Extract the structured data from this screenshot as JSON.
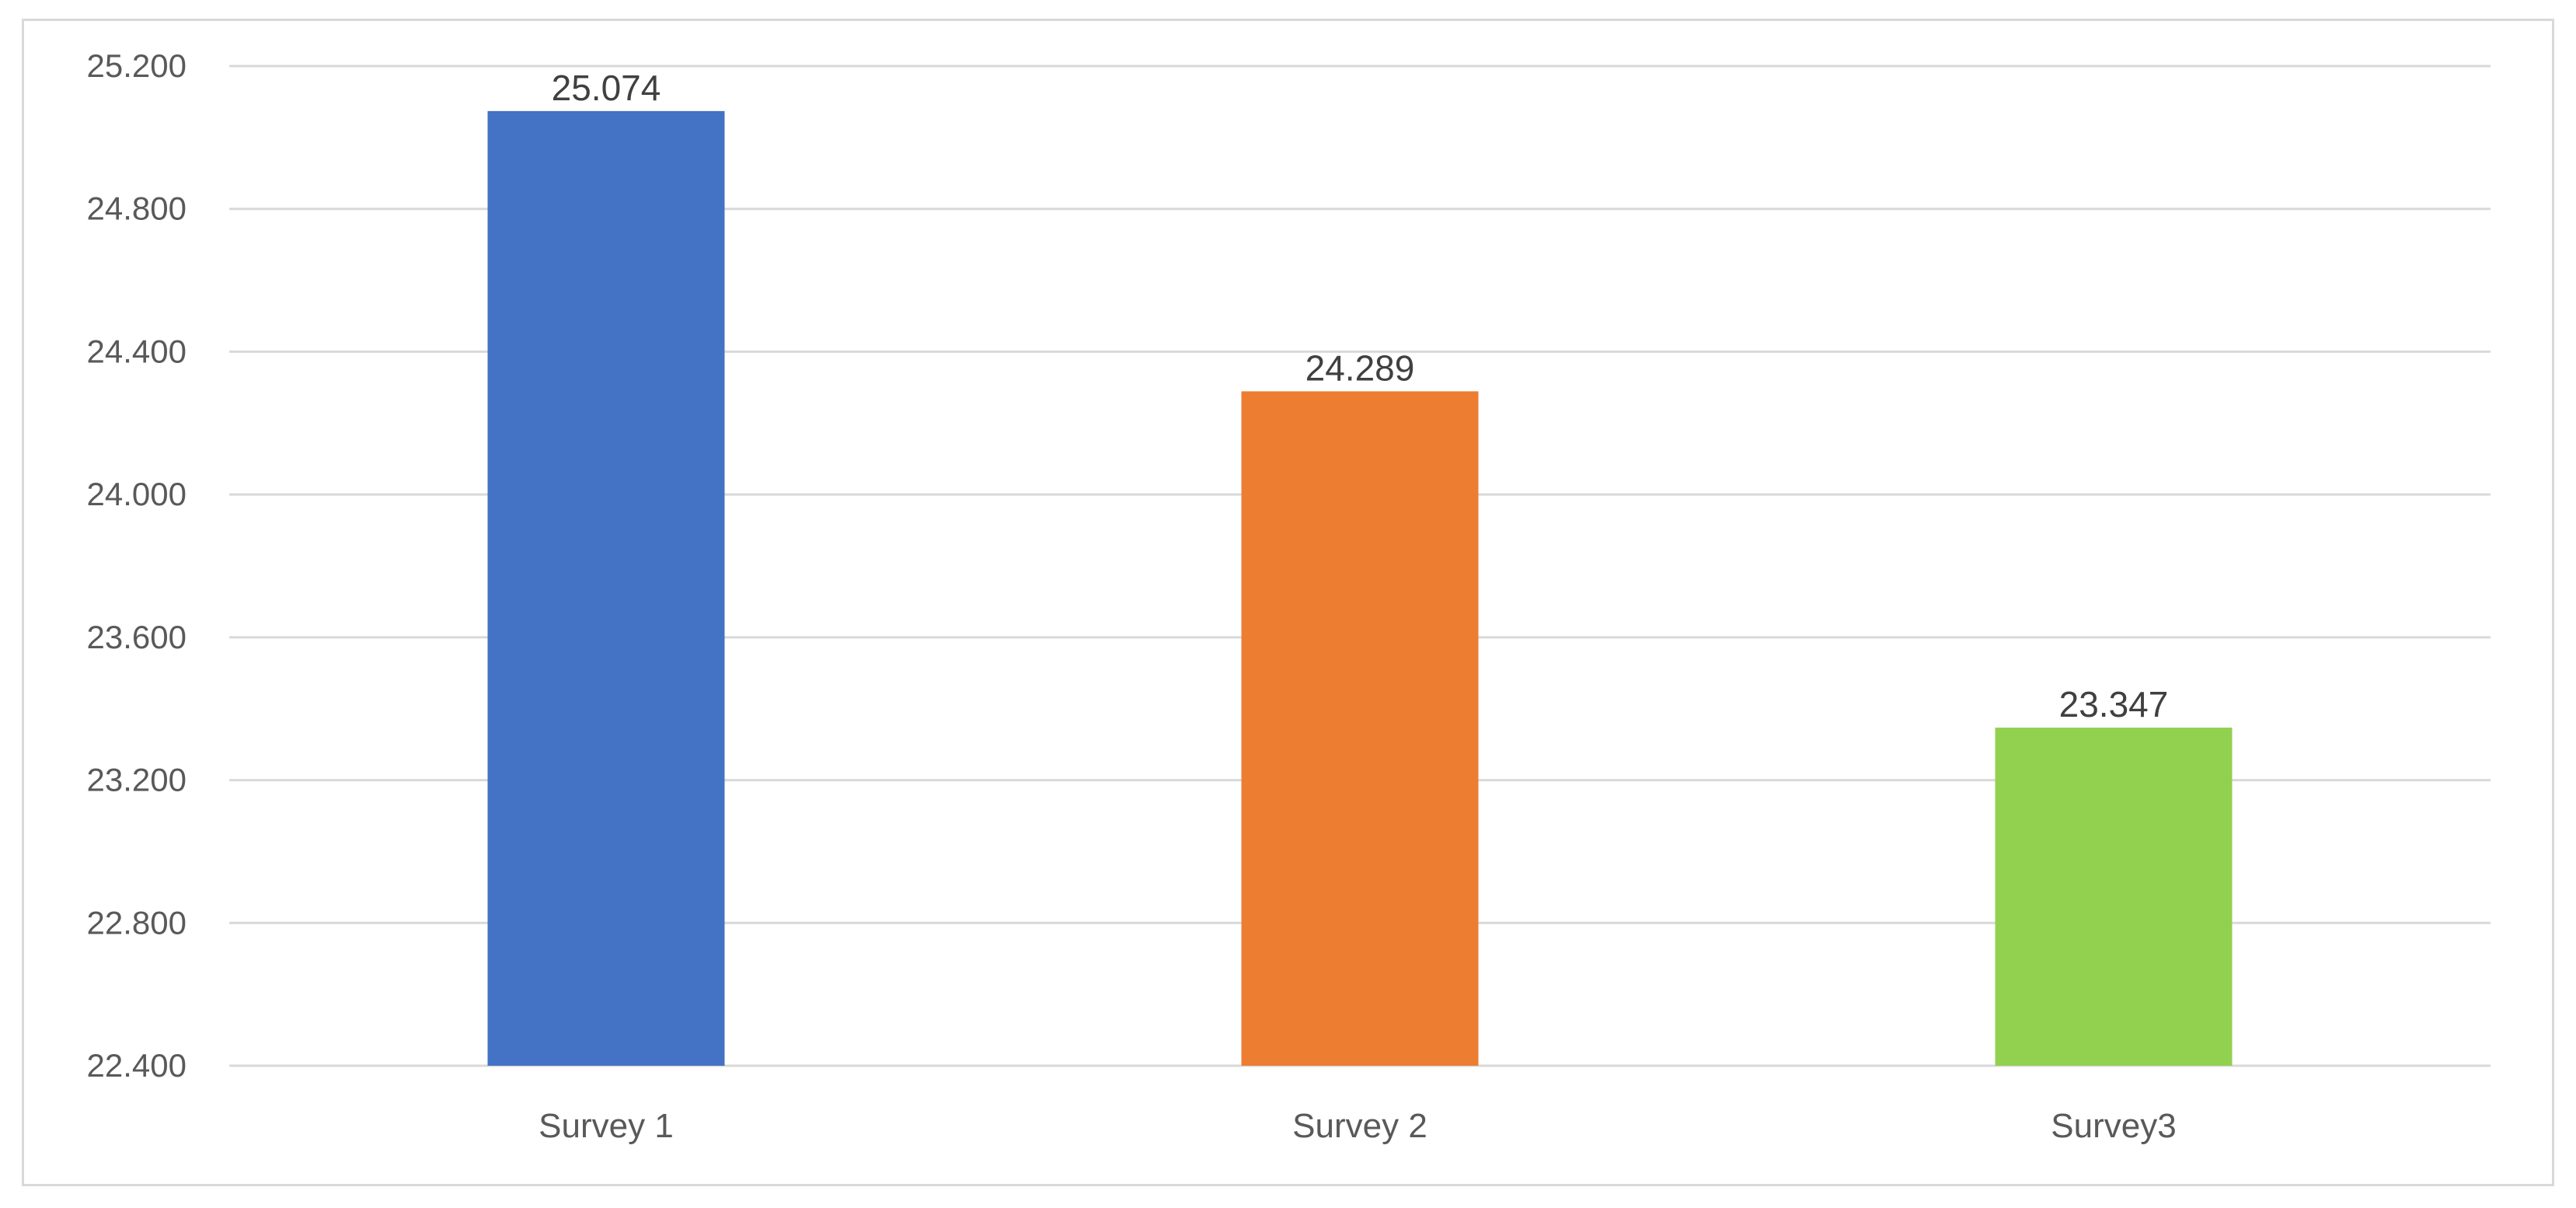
{
  "chart_data": {
    "type": "bar",
    "title": "",
    "xlabel": "",
    "ylabel": "",
    "categories": [
      "Survey 1",
      "Survey 2",
      "Survey3"
    ],
    "values": [
      25.074,
      24.289,
      23.347
    ],
    "value_labels": [
      "25.074",
      "24.289",
      "23.347"
    ],
    "colors": [
      "#4472c4",
      "#ed7d31",
      "#92d050"
    ],
    "ylim": [
      22.4,
      25.2
    ],
    "yticks": [
      22.4,
      22.8,
      23.2,
      23.6,
      24.0,
      24.4,
      24.8,
      25.2
    ],
    "ytick_labels": [
      "22.400",
      "22.800",
      "23.200",
      "23.600",
      "24.000",
      "24.400",
      "24.800",
      "25.200"
    ],
    "grid": true,
    "legend": "none"
  }
}
